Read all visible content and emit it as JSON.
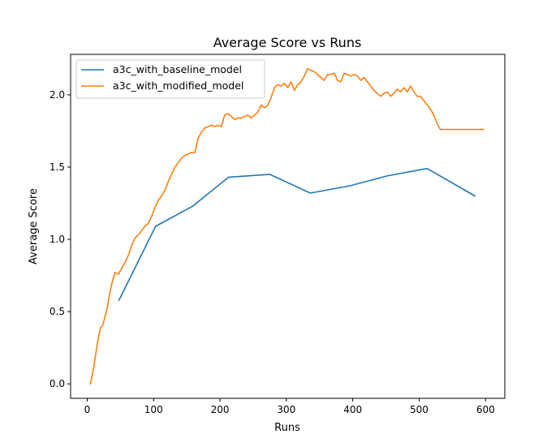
{
  "chart_data": {
    "type": "line",
    "title": "Average Score vs Runs",
    "xlabel": "Runs",
    "ylabel": "Average Score",
    "xlim": [
      -25,
      629
    ],
    "ylim": [
      -0.1,
      2.28
    ],
    "xticks": [
      0,
      100,
      200,
      300,
      400,
      500,
      600
    ],
    "yticks": [
      0.0,
      0.5,
      1.0,
      1.5,
      2.0
    ],
    "xtick_labels": [
      "0",
      "100",
      "200",
      "300",
      "400",
      "500",
      "600"
    ],
    "ytick_labels": [
      "0.0",
      "0.5",
      "1.0",
      "1.5",
      "2.0"
    ],
    "grid": false,
    "legend_position": "top-left",
    "series": [
      {
        "name": "a3c_with_baseline_model",
        "color": "#1f77b4",
        "x": [
          48,
          103,
          159,
          213,
          275,
          336,
          395,
          453,
          512,
          584
        ],
        "y": [
          0.58,
          1.09,
          1.23,
          1.43,
          1.45,
          1.32,
          1.37,
          1.44,
          1.49,
          1.3
        ]
      },
      {
        "name": "a3c_with_modified_model",
        "color": "#ff7f0e",
        "x": [
          5,
          10,
          15,
          20,
          23,
          26,
          30,
          34,
          38,
          42,
          47,
          52,
          57,
          62,
          67,
          72,
          77,
          82,
          87,
          92,
          97,
          102,
          107,
          112,
          117,
          122,
          127,
          132,
          137,
          142,
          147,
          152,
          157,
          162,
          167,
          172,
          177,
          182,
          187,
          192,
          197,
          202,
          207,
          212,
          217,
          222,
          227,
          232,
          237,
          242,
          247,
          252,
          257,
          262,
          267,
          272,
          277,
          282,
          287,
          292,
          297,
          302,
          307,
          312,
          317,
          322,
          327,
          332,
          337,
          342,
          347,
          352,
          357,
          362,
          367,
          372,
          377,
          382,
          387,
          392,
          397,
          402,
          407,
          412,
          417,
          422,
          427,
          432,
          437,
          442,
          447,
          452,
          457,
          462,
          467,
          472,
          477,
          482,
          487,
          492,
          497,
          502,
          507,
          512,
          517,
          522,
          527,
          532,
          537,
          542,
          547,
          552,
          557,
          562,
          567,
          572,
          577,
          582,
          587,
          592,
          597
        ],
        "y": [
          0.0,
          0.12,
          0.27,
          0.39,
          0.4,
          0.45,
          0.52,
          0.63,
          0.71,
          0.77,
          0.76,
          0.8,
          0.84,
          0.89,
          0.96,
          1.01,
          1.03,
          1.06,
          1.09,
          1.11,
          1.16,
          1.22,
          1.27,
          1.3,
          1.34,
          1.4,
          1.45,
          1.5,
          1.53,
          1.56,
          1.58,
          1.59,
          1.6,
          1.6,
          1.7,
          1.74,
          1.77,
          1.78,
          1.79,
          1.78,
          1.79,
          1.78,
          1.86,
          1.87,
          1.85,
          1.83,
          1.84,
          1.84,
          1.85,
          1.86,
          1.84,
          1.86,
          1.88,
          1.93,
          1.91,
          1.93,
          1.98,
          2.05,
          2.07,
          2.06,
          2.08,
          2.05,
          2.09,
          2.03,
          2.07,
          2.09,
          2.13,
          2.18,
          2.17,
          2.16,
          2.14,
          2.12,
          2.1,
          2.14,
          2.14,
          2.15,
          2.1,
          2.09,
          2.15,
          2.14,
          2.13,
          2.14,
          2.13,
          2.1,
          2.12,
          2.09,
          2.06,
          2.03,
          2.01,
          1.99,
          2.01,
          2.02,
          1.99,
          2.01,
          2.04,
          2.02,
          2.05,
          2.02,
          2.06,
          2.02,
          1.99,
          1.99,
          1.96,
          1.93,
          1.9,
          1.86,
          1.8,
          1.76,
          1.76,
          1.76,
          1.76,
          1.76,
          1.76,
          1.76,
          1.76,
          1.76,
          1.76,
          1.76,
          1.76,
          1.76,
          1.76
        ]
      }
    ]
  }
}
